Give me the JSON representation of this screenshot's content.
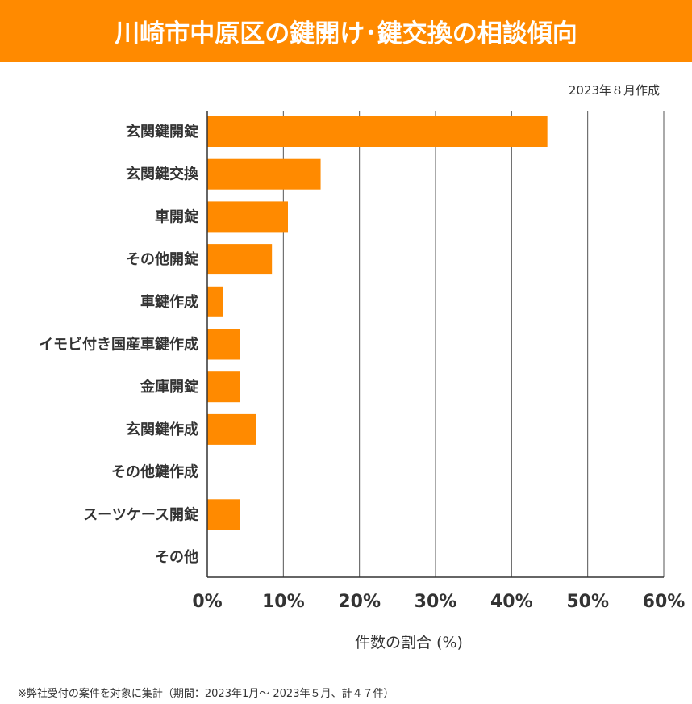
{
  "title": "川崎市中原区の鍵開け･鍵交換の相談傾向",
  "date_note": "2023年８月作成",
  "footnote": "※弊社受付の案件を対象に集計（期間：2023年1月～ 2023年５月、計４７件）",
  "chart_data": {
    "type": "bar",
    "orientation": "horizontal",
    "categories": [
      "玄関鍵開錠",
      "玄関鍵交換",
      "車開錠",
      "その他開錠",
      "車鍵作成",
      "イモビ付き国産車鍵作成",
      "金庫開錠",
      "玄関鍵作成",
      "その他鍵作成",
      "スーツケース開錠",
      "その他"
    ],
    "values": [
      44.7,
      14.9,
      10.6,
      8.5,
      2.1,
      4.3,
      4.3,
      6.4,
      0,
      4.3,
      0
    ],
    "xlabel": "件数の割合 (%)",
    "xlim": [
      0,
      60
    ],
    "xticks": [
      "0%",
      "10%",
      "20%",
      "30%",
      "40%",
      "50%",
      "60%"
    ],
    "grid": true,
    "bar_color": "#ff8a00"
  }
}
